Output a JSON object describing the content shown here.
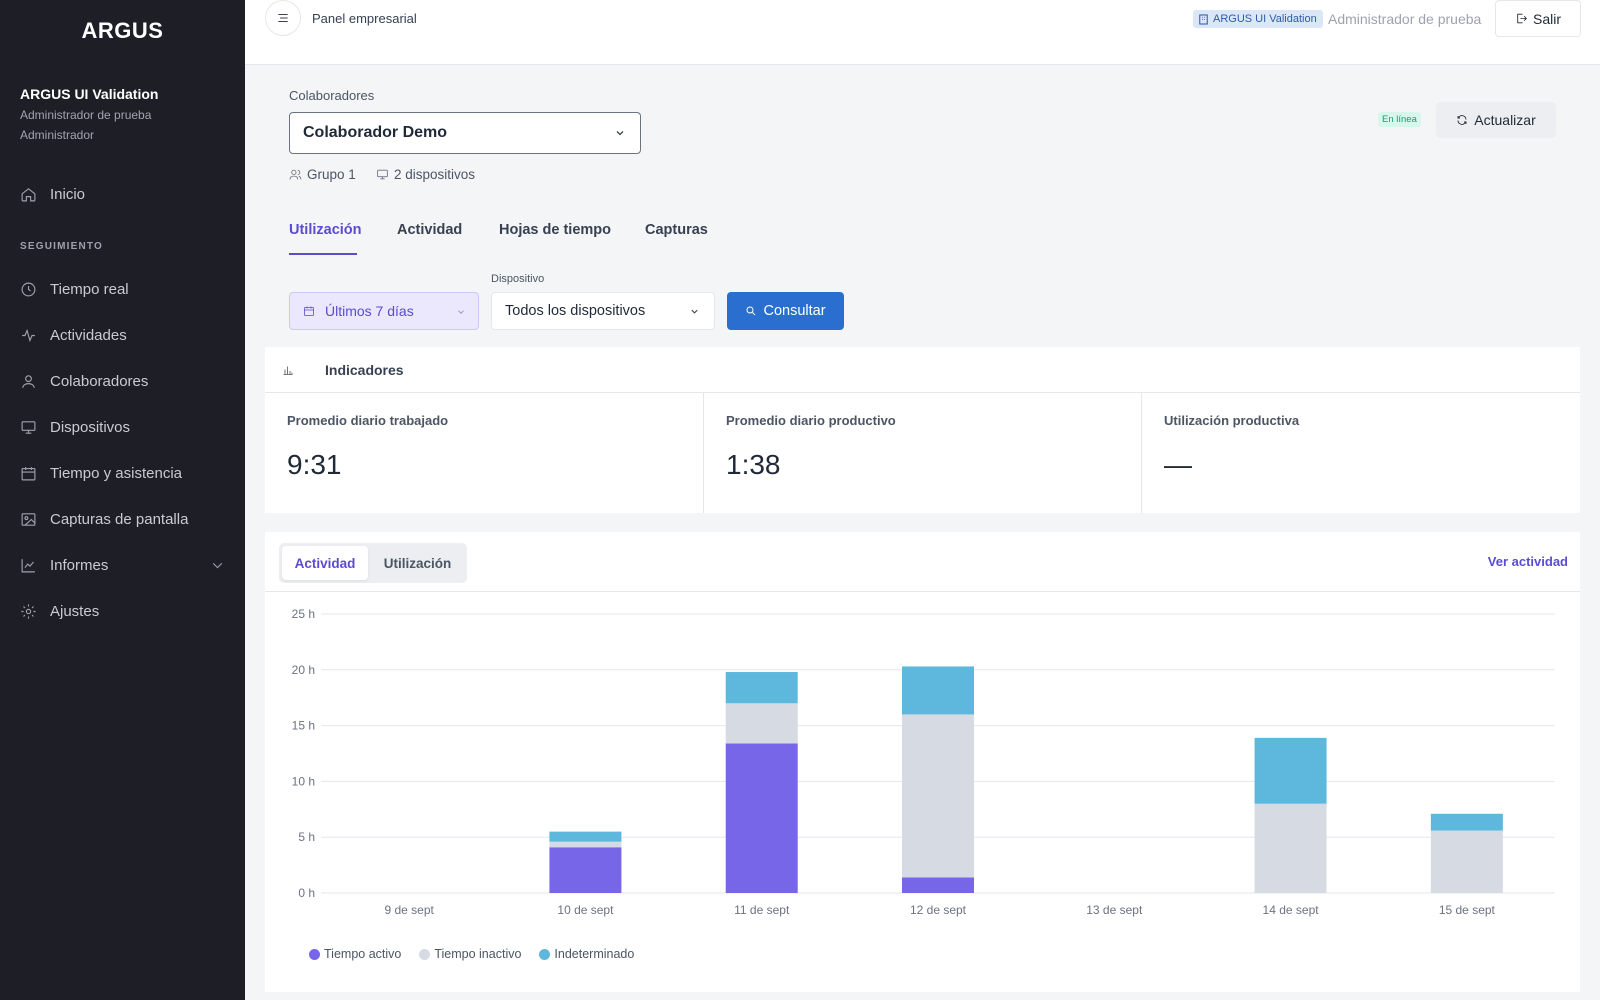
{
  "sidebar": {
    "brand": "ARGUS",
    "org_name": "ARGUS UI Validation",
    "user": "Administrador de prueba",
    "role": "Administrador",
    "section_label": "SEGUIMIENTO",
    "items": [
      {
        "label": "Inicio",
        "icon": "home-icon"
      },
      {
        "label": "Tiempo real",
        "icon": "clock-icon"
      },
      {
        "label": "Actividades",
        "icon": "activity-icon"
      },
      {
        "label": "Colaboradores",
        "icon": "user-icon"
      },
      {
        "label": "Dispositivos",
        "icon": "monitor-icon"
      },
      {
        "label": "Tiempo y asistencia",
        "icon": "calendar-icon"
      },
      {
        "label": "Capturas de pantalla",
        "icon": "image-icon"
      },
      {
        "label": "Informes",
        "icon": "chart-line-icon"
      },
      {
        "label": "Ajustes",
        "icon": "gear-icon"
      }
    ]
  },
  "topbar": {
    "title": "Panel empresarial",
    "org_badge": "ARGUS UI Validation",
    "user": "Administrador de prueba",
    "logout_label": "Salir"
  },
  "collaborator": {
    "label": "Colaboradores",
    "selected": "Colaborador Demo",
    "group": "Grupo 1",
    "devices": "2 dispositivos",
    "status": "En línea",
    "refresh_label": "Actualizar"
  },
  "tabs": [
    {
      "label": "Utilización",
      "active": true
    },
    {
      "label": "Actividad",
      "active": false
    },
    {
      "label": "Hojas de tiempo",
      "active": false
    },
    {
      "label": "Capturas",
      "active": false
    }
  ],
  "filters": {
    "date_range": "Últimos 7 días",
    "device_label": "Dispositivo",
    "device_selected": "Todos los dispositivos",
    "query_label": "Consultar"
  },
  "indicators": {
    "title": "Indicadores",
    "kpis": [
      {
        "label": "Promedio diario trabajado",
        "value": "9:31"
      },
      {
        "label": "Promedio diario productivo",
        "value": "1:38"
      },
      {
        "label": "Utilización productiva",
        "value": "—"
      }
    ]
  },
  "chart_panel": {
    "toggle": [
      "Actividad",
      "Utilización"
    ],
    "active_toggle": "Actividad",
    "link": "Ver actividad"
  },
  "chart_data": {
    "type": "bar",
    "stacked": true,
    "categories": [
      "9 de sept",
      "10 de sept",
      "11 de sept",
      "12 de sept",
      "13 de sept",
      "14 de sept",
      "15 de sept"
    ],
    "series": [
      {
        "name": "Tiempo activo",
        "color": "#7866e8",
        "values": [
          0,
          4.1,
          13.4,
          1.4,
          0,
          0,
          0
        ]
      },
      {
        "name": "Tiempo inactivo",
        "color": "#d6dae2",
        "values": [
          0,
          0.5,
          3.6,
          14.6,
          0,
          8.0,
          5.6
        ]
      },
      {
        "name": "Indeterminado",
        "color": "#5eb7dc",
        "values": [
          0,
          0.9,
          2.8,
          4.3,
          0,
          5.9,
          1.5
        ]
      }
    ],
    "y_ticks": [
      "0 h",
      "5 h",
      "10 h",
      "15 h",
      "20 h",
      "25 h"
    ],
    "ylim": [
      0,
      25
    ],
    "grid": true,
    "legend_position": "bottom-left"
  }
}
